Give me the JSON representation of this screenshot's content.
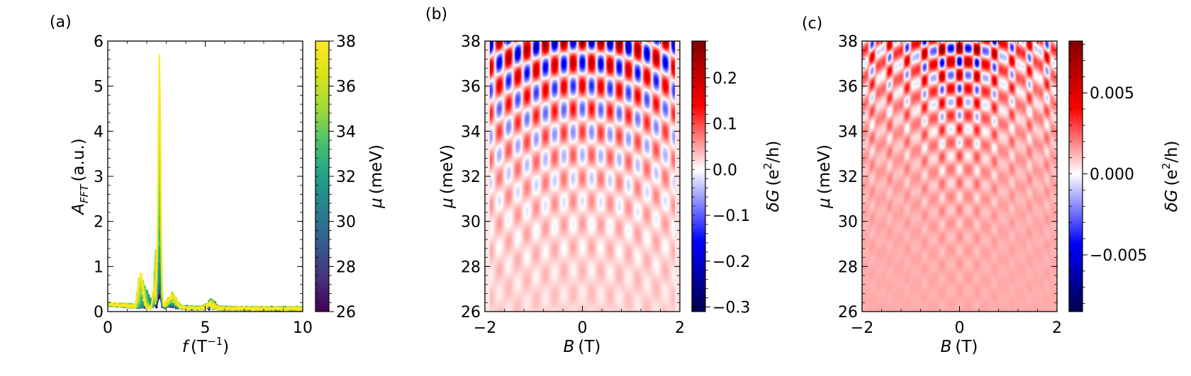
{
  "chart_data": [
    {
      "panel": "(a)",
      "type": "line",
      "xlabel_main": "f",
      "xlabel_unit": "(T",
      "xlabel_unit_exp": "−1",
      "xlabel_unit_close": ")",
      "ylabel_main": "A",
      "ylabel_sub": "FFT",
      "ylabel_unit": "(a.u.)",
      "xlim": [
        0,
        10
      ],
      "ylim": [
        0,
        6
      ],
      "xticks": [
        0,
        5,
        10
      ],
      "xtick_labels": [
        "0",
        "5",
        "10"
      ],
      "yticks": [
        0,
        1,
        2,
        3,
        4,
        5,
        6
      ],
      "ytick_labels": [
        "0",
        "1",
        "2",
        "3",
        "4",
        "5",
        "6"
      ],
      "colorbar": {
        "label_main": "μ",
        "label_unit": "(meV)",
        "range": [
          26,
          38
        ],
        "ticks": [
          26,
          28,
          30,
          32,
          34,
          36,
          38
        ],
        "tick_labels": [
          "26",
          "28",
          "30",
          "32",
          "34",
          "36",
          "38"
        ],
        "colormap": "viridis"
      },
      "peak": {
        "x": 2.65,
        "y_max": 5.55
      },
      "series": [
        {
          "name": "μ=38 meV",
          "mu": 38,
          "peak": 5.55,
          "sat": 0.72,
          "sat_x": 1.7,
          "color": "#fde725"
        },
        {
          "name": "μ=37 meV",
          "mu": 37,
          "peak": 4.45,
          "sat": 0.65,
          "sat_x": 1.65,
          "color": "#d8e219"
        },
        {
          "name": "μ=36 meV",
          "mu": 36,
          "peak": 4.3,
          "sat": 0.6,
          "sat_x": 1.75,
          "color": "#b5de2b"
        },
        {
          "name": "μ=35 meV",
          "mu": 35,
          "peak": 3.4,
          "sat": 0.55,
          "sat_x": 1.8,
          "color": "#8fd744"
        },
        {
          "name": "μ=34 meV",
          "mu": 34,
          "peak": 2.9,
          "sat": 0.5,
          "sat_x": 1.7,
          "color": "#6ccd5a"
        },
        {
          "name": "μ=33 meV",
          "mu": 33,
          "peak": 2.3,
          "sat": 0.45,
          "sat_x": 1.85,
          "color": "#4ac16d"
        },
        {
          "name": "μ=32 meV",
          "mu": 32,
          "peak": 1.8,
          "sat": 0.4,
          "sat_x": 1.9,
          "color": "#2db27d"
        },
        {
          "name": "μ=31 meV",
          "mu": 31,
          "peak": 1.3,
          "sat": 0.35,
          "sat_x": 2.0,
          "color": "#1fa187"
        },
        {
          "name": "μ=30 meV",
          "mu": 30,
          "peak": 1.0,
          "sat": 0.3,
          "sat_x": 2.0,
          "color": "#21918c"
        },
        {
          "name": "μ=29 meV",
          "mu": 29,
          "peak": 0.75,
          "sat": 0.25,
          "sat_x": 2.1,
          "color": "#287c8e"
        },
        {
          "name": "μ=28 meV",
          "mu": 28,
          "peak": 0.55,
          "sat": 0.2,
          "sat_x": 2.1,
          "color": "#31688e"
        },
        {
          "name": "μ=27 meV",
          "mu": 27,
          "peak": 0.4,
          "sat": 0.15,
          "sat_x": 2.2,
          "color": "#3e4989"
        },
        {
          "name": "μ=26 meV",
          "mu": 26,
          "peak": 0.3,
          "sat": 0.1,
          "sat_x": 2.2,
          "color": "#440154"
        }
      ]
    },
    {
      "panel": "(b)",
      "type": "heatmap",
      "xlabel_main": "B",
      "xlabel_unit": "(T)",
      "ylabel_main": "μ",
      "ylabel_unit": "(meV)",
      "xlim": [
        -2,
        2
      ],
      "ylim": [
        26,
        38
      ],
      "xticks": [
        -2,
        0,
        2
      ],
      "xtick_labels": [
        "−2",
        "0",
        "2"
      ],
      "yticks": [
        26,
        28,
        30,
        32,
        34,
        36,
        38
      ],
      "ytick_labels": [
        "26",
        "28",
        "30",
        "32",
        "34",
        "36",
        "38"
      ],
      "data_extent_x": [
        -1.9,
        1.9
      ],
      "fringe_period_T": 0.38,
      "colorbar": {
        "label_main": "δG",
        "label_unit_open": "(e",
        "label_unit_exp": "2",
        "label_unit_close": "/h)",
        "range": [
          -0.31,
          0.28
        ],
        "ticks": [
          -0.3,
          -0.2,
          -0.1,
          0.0,
          0.1,
          0.2
        ],
        "tick_labels": [
          "−0.3",
          "−0.2",
          "−0.1",
          "0.0",
          "0.1",
          "0.2"
        ],
        "colormap": "seismic"
      }
    },
    {
      "panel": "(c)",
      "type": "heatmap",
      "xlabel_main": "B",
      "xlabel_unit": "(T)",
      "ylabel_main": "μ",
      "ylabel_unit": "(meV)",
      "xlim": [
        -2,
        2
      ],
      "ylim": [
        26,
        38
      ],
      "xticks": [
        -2,
        0,
        2
      ],
      "xtick_labels": [
        "−2",
        "0",
        "2"
      ],
      "yticks": [
        26,
        28,
        30,
        32,
        34,
        36,
        38
      ],
      "ytick_labels": [
        "26",
        "28",
        "30",
        "32",
        "34",
        "36",
        "38"
      ],
      "colorbar": {
        "label_main": "δG",
        "label_unit_open": "(e",
        "label_unit_exp": "2",
        "label_unit_close": "/h)",
        "range": [
          -0.0085,
          0.0082
        ],
        "ticks": [
          -0.005,
          0.0,
          0.005
        ],
        "tick_labels": [
          "−0.005",
          "0.000",
          "0.005"
        ],
        "colormap": "seismic"
      }
    }
  ]
}
